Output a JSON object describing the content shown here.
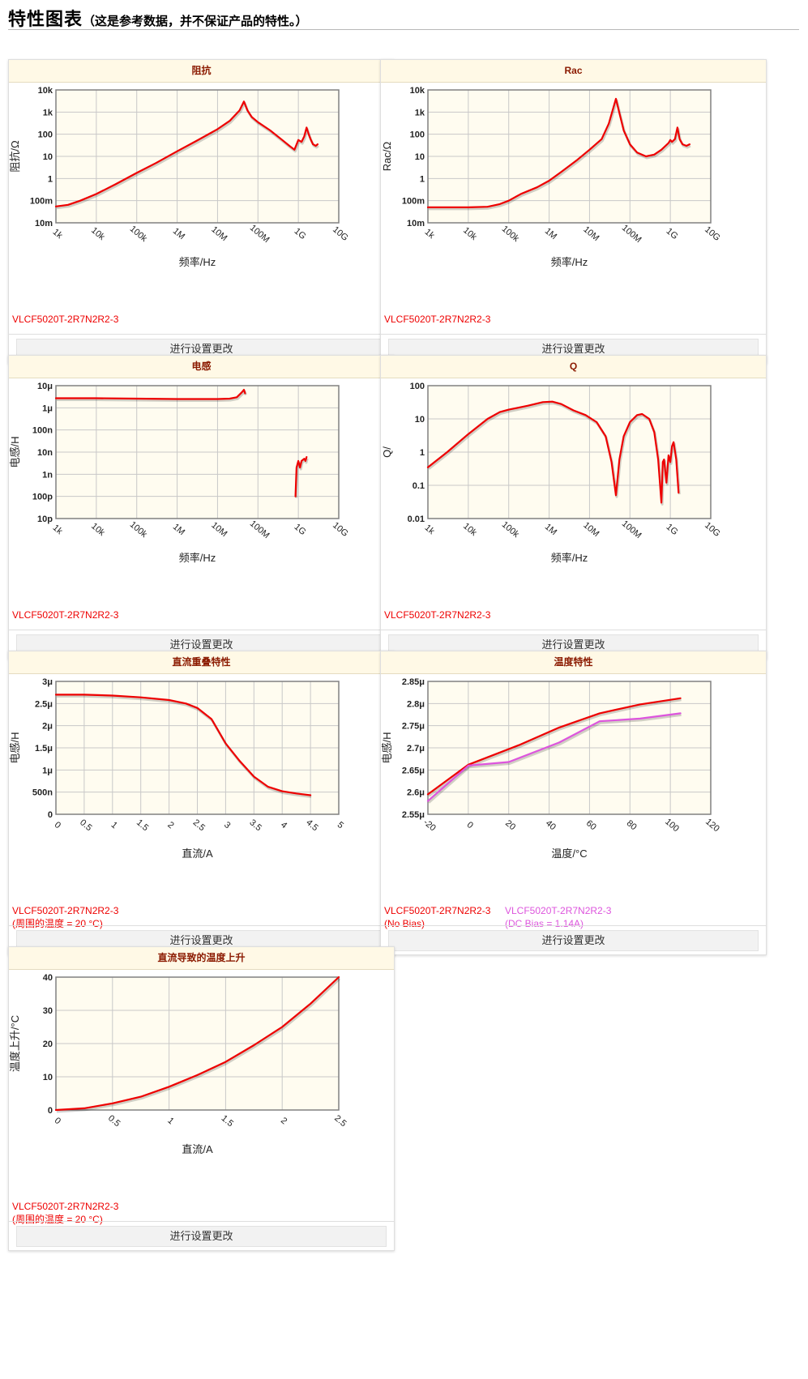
{
  "header": {
    "title": "特性图表",
    "subtitle": "（这是参考数据，并不保证产品的特性。）"
  },
  "settings_label": "进行设置更改",
  "charts": [
    {
      "title": "阻抗",
      "chart_data": {
        "type": "line",
        "x_scale": "log",
        "y_scale": "log",
        "xlim": [
          1000,
          10000000000
        ],
        "ylim": [
          0.01,
          10000
        ],
        "x_ticks": [
          "1k",
          "10k",
          "100k",
          "1M",
          "10M",
          "100M",
          "1G",
          "10G"
        ],
        "y_ticks": [
          "10m",
          "100m",
          "1",
          "10",
          "100",
          "1k",
          "10k"
        ],
        "xlabel": "频率/Hz",
        "ylabel": "阻抗/Ω",
        "series": [
          {
            "name": "VLCF5020T-2R7N2R2-3",
            "color": "#ee0000",
            "points": [
              [
                1000,
                0.055
              ],
              [
                2000,
                0.065
              ],
              [
                4000,
                0.1
              ],
              [
                10000,
                0.2
              ],
              [
                30000,
                0.55
              ],
              [
                100000,
                1.8
              ],
              [
                300000,
                5
              ],
              [
                1000000,
                17
              ],
              [
                3000000,
                50
              ],
              [
                10000000,
                170
              ],
              [
                20000000,
                400
              ],
              [
                35000000,
                1200
              ],
              [
                45000000,
                3000
              ],
              [
                55000000,
                1200
              ],
              [
                70000000,
                600
              ],
              [
                100000000,
                350
              ],
              [
                200000000,
                150
              ],
              [
                400000000,
                55
              ],
              [
                600000000,
                30
              ],
              [
                800000000,
                20
              ],
              [
                1000000000,
                55
              ],
              [
                1200000000,
                45
              ],
              [
                1400000000,
                80
              ],
              [
                1600000000,
                200
              ],
              [
                1800000000,
                100
              ],
              [
                2000000000,
                60
              ],
              [
                2300000000,
                35
              ],
              [
                2700000000,
                30
              ],
              [
                3000000000,
                35
              ]
            ]
          }
        ]
      }
    },
    {
      "title": "Rac",
      "chart_data": {
        "type": "line",
        "x_scale": "log",
        "y_scale": "log",
        "xlim": [
          1000,
          10000000000
        ],
        "ylim": [
          0.01,
          10000
        ],
        "x_ticks": [
          "1k",
          "10k",
          "100k",
          "1M",
          "10M",
          "100M",
          "1G",
          "10G"
        ],
        "y_ticks": [
          "10m",
          "100m",
          "1",
          "10",
          "100",
          "1k",
          "10k"
        ],
        "xlabel": "频率/Hz",
        "ylabel": "Rac/Ω",
        "series": [
          {
            "name": "VLCF5020T-2R7N2R2-3",
            "color": "#ee0000",
            "points": [
              [
                1000,
                0.05
              ],
              [
                10000,
                0.05
              ],
              [
                30000,
                0.053
              ],
              [
                60000,
                0.07
              ],
              [
                100000,
                0.1
              ],
              [
                200000,
                0.2
              ],
              [
                500000,
                0.4
              ],
              [
                1000000,
                0.8
              ],
              [
                2000000,
                2
              ],
              [
                5000000,
                7
              ],
              [
                10000000,
                20
              ],
              [
                20000000,
                60
              ],
              [
                30000000,
                300
              ],
              [
                45000000,
                4000
              ],
              [
                55000000,
                900
              ],
              [
                70000000,
                150
              ],
              [
                100000000,
                35
              ],
              [
                150000000,
                15
              ],
              [
                250000000,
                10
              ],
              [
                400000000,
                12
              ],
              [
                600000000,
                20
              ],
              [
                900000000,
                40
              ],
              [
                1000000000,
                55
              ],
              [
                1100000000,
                45
              ],
              [
                1300000000,
                60
              ],
              [
                1500000000,
                200
              ],
              [
                1700000000,
                60
              ],
              [
                2000000000,
                35
              ],
              [
                2500000000,
                30
              ],
              [
                3000000000,
                35
              ]
            ]
          }
        ]
      }
    },
    {
      "title": "电感",
      "chart_data": {
        "type": "line",
        "x_scale": "log",
        "y_scale": "log",
        "xlim": [
          1000,
          10000000000
        ],
        "ylim": [
          1e-11,
          1e-05
        ],
        "x_ticks": [
          "1k",
          "10k",
          "100k",
          "1M",
          "10M",
          "100M",
          "1G",
          "10G"
        ],
        "y_ticks": [
          "10p",
          "100p",
          "1n",
          "10n",
          "100n",
          "1μ",
          "10μ"
        ],
        "xlabel": "频率/Hz",
        "ylabel": "电感/H",
        "series": [
          {
            "name": "VLCF5020T-2R7N2R2-3",
            "color": "#ee0000",
            "points": [
              [
                1000,
                2.7e-06
              ],
              [
                10000,
                2.7e-06
              ],
              [
                100000,
                2.6e-06
              ],
              [
                1000000,
                2.5e-06
              ],
              [
                10000000,
                2.5e-06
              ],
              [
                20000000,
                2.6e-06
              ],
              [
                30000000,
                3e-06
              ],
              [
                40000000,
                5e-06
              ],
              [
                45000000,
                6.5e-06
              ],
              [
                48000000,
                4.5e-06
              ]
            ]
          },
          {
            "name": "VLCF5020T-2R7N2R2-3",
            "color": "#ee0000",
            "points": [
              [
                850000000,
                1e-10
              ],
              [
                900000000,
                2e-09
              ],
              [
                1000000000,
                4e-09
              ],
              [
                1100000000,
                2e-09
              ],
              [
                1200000000,
                4e-09
              ],
              [
                1400000000,
                5e-09
              ],
              [
                1500000000,
                4e-09
              ],
              [
                1600000000,
                6e-09
              ]
            ]
          }
        ]
      }
    },
    {
      "title": "Q",
      "chart_data": {
        "type": "line",
        "x_scale": "log",
        "y_scale": "log",
        "xlim": [
          1000,
          10000000000
        ],
        "ylim": [
          0.01,
          100
        ],
        "x_ticks": [
          "1k",
          "10k",
          "100k",
          "1M",
          "10M",
          "100M",
          "1G",
          "10G"
        ],
        "y_ticks": [
          "0.01",
          "0.1",
          "1",
          "10",
          "100"
        ],
        "xlabel": "频率/Hz",
        "ylabel": "Q/",
        "series": [
          {
            "name": "VLCF5020T-2R7N2R2-3",
            "color": "#ee0000",
            "points": [
              [
                1000,
                0.35
              ],
              [
                3000,
                1
              ],
              [
                10000,
                3.5
              ],
              [
                30000,
                10
              ],
              [
                60000,
                16
              ],
              [
                100000,
                19
              ],
              [
                300000,
                25
              ],
              [
                700000,
                32
              ],
              [
                1200000,
                33
              ],
              [
                2000000,
                28
              ],
              [
                4000000,
                18
              ],
              [
                8000000,
                13
              ],
              [
                15000000,
                8
              ],
              [
                25000000,
                3
              ],
              [
                35000000,
                0.5
              ],
              [
                45000000,
                0.05
              ],
              [
                55000000,
                0.6
              ],
              [
                70000000,
                3
              ],
              [
                100000000,
                8
              ],
              [
                150000000,
                13
              ],
              [
                200000000,
                14
              ],
              [
                300000000,
                10
              ],
              [
                400000000,
                4
              ],
              [
                500000000,
                0.6
              ],
              [
                600000000,
                0.03
              ],
              [
                650000000,
                0.5
              ],
              [
                700000000,
                0.6
              ],
              [
                800000000,
                0.12
              ],
              [
                900000000,
                0.8
              ],
              [
                1000000000,
                0.5
              ],
              [
                1100000000,
                1.5
              ],
              [
                1200000000,
                2
              ],
              [
                1400000000,
                0.6
              ],
              [
                1600000000,
                0.06
              ]
            ]
          }
        ]
      }
    },
    {
      "title": "直流重叠特性",
      "chart_data": {
        "type": "line",
        "x_scale": "linear",
        "y_scale": "linear",
        "xlim": [
          0,
          5
        ],
        "ylim": [
          0,
          3e-06
        ],
        "x_ticks": [
          "0",
          "0.5",
          "1",
          "1.5",
          "2",
          "2.5",
          "3",
          "3.5",
          "4",
          "4.5",
          "5"
        ],
        "y_ticks": [
          "0",
          "500n",
          "1μ",
          "1.5μ",
          "2μ",
          "2.5μ",
          "3μ"
        ],
        "xlabel": "直流/A",
        "ylabel": "电感/H",
        "series": [
          {
            "name": "VLCF5020T-2R7N2R2-3(周围的温度 = 20 °C)",
            "color": "#ee0000",
            "points": [
              [
                0,
                2.7e-06
              ],
              [
                0.5,
                2.7e-06
              ],
              [
                1,
                2.68e-06
              ],
              [
                1.5,
                2.64e-06
              ],
              [
                2,
                2.58e-06
              ],
              [
                2.3,
                2.5e-06
              ],
              [
                2.5,
                2.4e-06
              ],
              [
                2.75,
                2.15e-06
              ],
              [
                3,
                1.6e-06
              ],
              [
                3.25,
                1.2e-06
              ],
              [
                3.5,
                8.5e-07
              ],
              [
                3.75,
                6.2e-07
              ],
              [
                4,
                5.2e-07
              ],
              [
                4.25,
                4.7e-07
              ],
              [
                4.5,
                4.3e-07
              ]
            ]
          }
        ]
      }
    },
    {
      "title": "温度特性",
      "chart_data": {
        "type": "line",
        "x_scale": "linear",
        "y_scale": "linear",
        "xlim": [
          -20,
          120
        ],
        "ylim": [
          2.55e-06,
          2.85e-06
        ],
        "x_ticks": [
          "-20",
          "0",
          "20",
          "40",
          "60",
          "80",
          "100",
          "120"
        ],
        "y_ticks": [
          "2.55μ",
          "2.6μ",
          "2.65μ",
          "2.7μ",
          "2.75μ",
          "2.8μ",
          "2.85μ"
        ],
        "xlabel": "温度/°C",
        "ylabel": "电感/H",
        "series": [
          {
            "name": "VLCF5020T-2R7N2R2-3 (No Bias)",
            "color": "#ee0000",
            "points": [
              [
                -20,
                2.595e-06
              ],
              [
                0,
                2.662e-06
              ],
              [
                25,
                2.706e-06
              ],
              [
                45,
                2.746e-06
              ],
              [
                65,
                2.778e-06
              ],
              [
                85,
                2.798e-06
              ],
              [
                105,
                2.812e-06
              ]
            ]
          },
          {
            "name": "VLCF5020T-2R7N2R2-3(DC Bias = 1.14A)",
            "color": "#dd55dd",
            "points": [
              [
                -20,
                2.58e-06
              ],
              [
                0,
                2.66e-06
              ],
              [
                20,
                2.668e-06
              ],
              [
                45,
                2.712e-06
              ],
              [
                65,
                2.76e-06
              ],
              [
                85,
                2.766e-06
              ],
              [
                105,
                2.778e-06
              ]
            ]
          }
        ]
      }
    },
    {
      "title": "直流导致的温度上升",
      "chart_data": {
        "type": "line",
        "x_scale": "linear",
        "y_scale": "linear",
        "xlim": [
          0,
          2.5
        ],
        "ylim": [
          0,
          40
        ],
        "x_ticks": [
          "0",
          "0.5",
          "1",
          "1.5",
          "2",
          "2.5"
        ],
        "y_ticks": [
          "0",
          "10",
          "20",
          "30",
          "40"
        ],
        "xlabel": "直流/A",
        "ylabel": "温度上升/°C",
        "series": [
          {
            "name": "VLCF5020T-2R7N2R2-3(周围的温度 = 20 °C)",
            "color": "#ee0000",
            "points": [
              [
                0,
                0
              ],
              [
                0.25,
                0.5
              ],
              [
                0.5,
                2
              ],
              [
                0.75,
                4
              ],
              [
                1,
                7
              ],
              [
                1.25,
                10.5
              ],
              [
                1.5,
                14.5
              ],
              [
                1.75,
                19.5
              ],
              [
                2,
                25
              ],
              [
                2.25,
                32
              ],
              [
                2.5,
                40
              ]
            ]
          }
        ]
      }
    }
  ]
}
